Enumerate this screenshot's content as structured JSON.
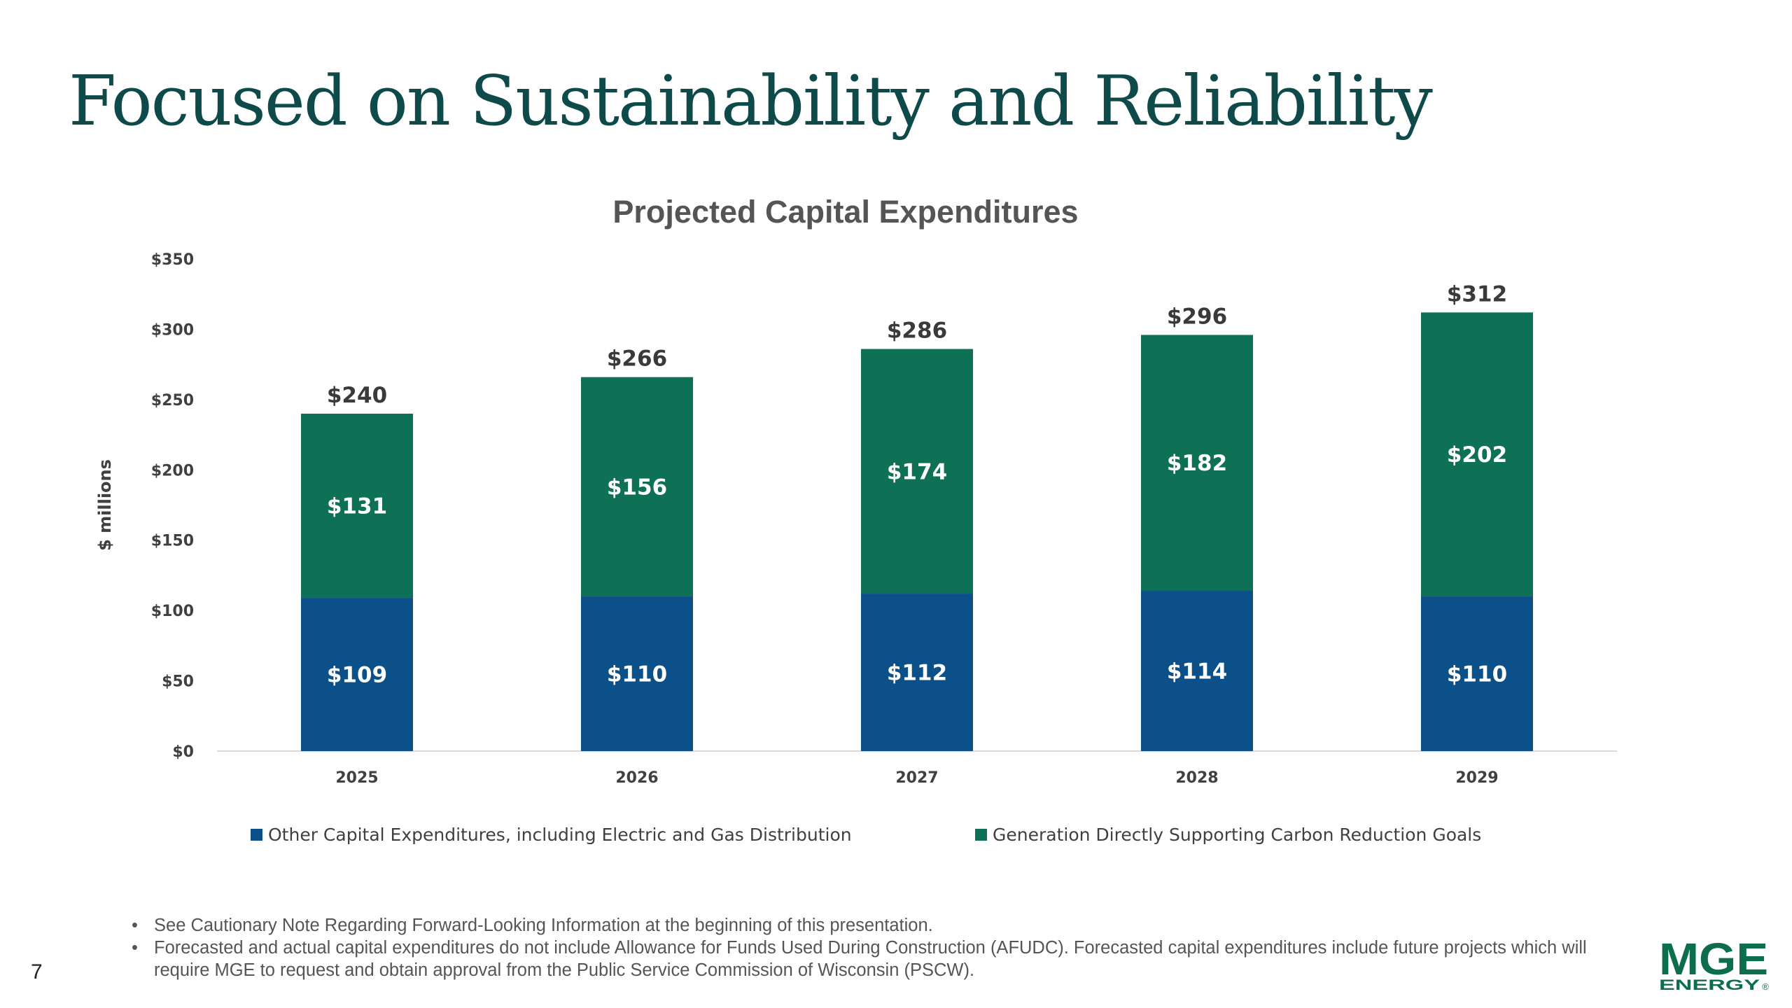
{
  "slide": {
    "title": "Focused on Sustainability and Reliability",
    "page_number": "7",
    "notes": [
      "See Cautionary Note Regarding Forward-Looking Information at the beginning of this presentation.",
      "Forecasted and actual capital expenditures do not include Allowance for Funds Used During Construction (AFUDC). Forecasted capital expenditures include future projects which will require MGE to request and obtain approval from the Public Service Commission of Wisconsin (PSCW)."
    ],
    "bullet_glyph": "•"
  },
  "logo": {
    "top_text": "MGE",
    "bottom_text": "ENERGY",
    "mark": "®",
    "color": "#0c6e4f"
  },
  "chart_data": {
    "type": "bar",
    "stacked": true,
    "title": "Projected Capital Expenditures",
    "ylabel": "$ millions",
    "xlabel": "",
    "ylim": [
      0,
      350
    ],
    "yticks": [
      0,
      50,
      100,
      150,
      200,
      250,
      300,
      350
    ],
    "ytick_labels": [
      "$0",
      "$50",
      "$100",
      "$150",
      "$200",
      "$250",
      "$300",
      "$350"
    ],
    "categories": [
      "2025",
      "2026",
      "2027",
      "2028",
      "2029"
    ],
    "series": [
      {
        "name": "Other Capital Expenditures, including Electric and Gas Distribution",
        "color": "#0b5088",
        "values": [
          109,
          110,
          112,
          114,
          110
        ],
        "labels": [
          "$109",
          "$110",
          "$112",
          "$114",
          "$110"
        ]
      },
      {
        "name": "Generation Directly Supporting Carbon Reduction Goals",
        "color": "#0e7155",
        "values": [
          131,
          156,
          174,
          182,
          202
        ],
        "labels": [
          "$131",
          "$156",
          "$174",
          "$182",
          "$202"
        ]
      }
    ],
    "totals": [
      240,
      266,
      286,
      296,
      312
    ],
    "total_labels": [
      "$240",
      "$266",
      "$286",
      "$296",
      "$312"
    ],
    "legend_position": "bottom",
    "grid": false
  }
}
